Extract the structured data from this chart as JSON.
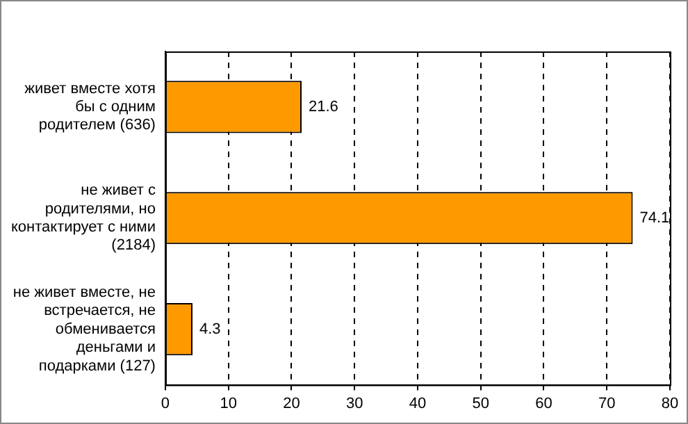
{
  "chart_data": {
    "type": "bar",
    "orientation": "horizontal",
    "categories": [
      "живет вместе хотя бы с одним родителем (636)",
      "не живет с родителями, но контактирует с ними (2184)",
      "не живет вместе, не встречается, не обменивается деньгами и подарками (127)"
    ],
    "values": [
      21.6,
      74.1,
      4.3
    ],
    "color": "#ff9900",
    "xlim": [
      0,
      80
    ],
    "xticks": [
      0,
      10,
      20,
      30,
      40,
      50,
      60,
      70,
      80
    ],
    "grid": "x",
    "data_labels": true
  }
}
